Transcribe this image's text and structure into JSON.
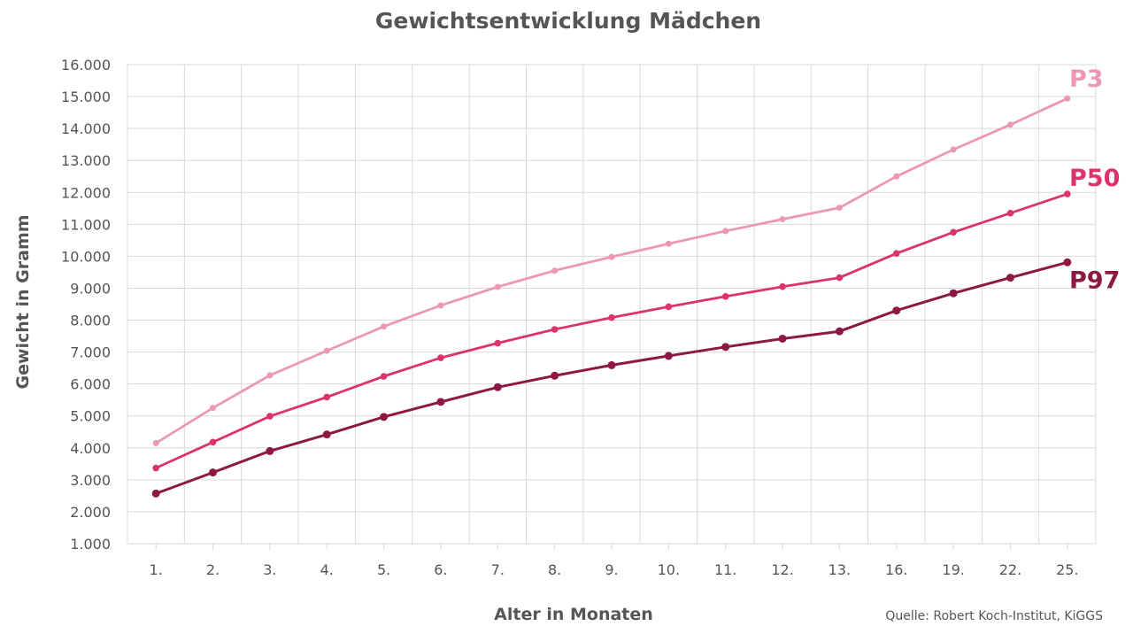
{
  "chart_data": {
    "type": "line",
    "title": "Gewichtsentwicklung Mädchen",
    "xlabel": "Alter in Monaten",
    "ylabel": "Gewicht in Gramm",
    "source": "Quelle: Robert Koch-Institut, KiGGS",
    "categories": [
      "1.",
      "2.",
      "3.",
      "4.",
      "5.",
      "6.",
      "7.",
      "8.",
      "9.",
      "10.",
      "11.",
      "12.",
      "13.",
      "16.",
      "19.",
      "22.",
      "25."
    ],
    "y_ticks": [
      "1.000",
      "2.000",
      "3.000",
      "4.000",
      "5.000",
      "6.000",
      "7.000",
      "8.000",
      "9.000",
      "10.000",
      "11.000",
      "12.000",
      "13.000",
      "14.000",
      "15.000",
      "16.000"
    ],
    "ylim": [
      1000,
      16000
    ],
    "grid": true,
    "legend": "end-of-line labels",
    "series": [
      {
        "name": "P3",
        "color": "#ec98b5",
        "values": [
          4150,
          5250,
          6270,
          7040,
          7800,
          8460,
          9040,
          9550,
          9980,
          10390,
          10790,
          11160,
          11520,
          12500,
          13340,
          14120,
          14940
        ]
      },
      {
        "name": "P50",
        "color": "#dc336e",
        "values": [
          3370,
          4180,
          4990,
          5590,
          6240,
          6820,
          7280,
          7710,
          8080,
          8420,
          8740,
          9050,
          9330,
          10090,
          10750,
          11350,
          11950
        ]
      },
      {
        "name": "P97",
        "color": "#8c1843",
        "values": [
          2570,
          3230,
          3900,
          4420,
          4970,
          5440,
          5900,
          6260,
          6590,
          6880,
          7160,
          7420,
          7650,
          8300,
          8840,
          9330,
          9810
        ]
      }
    ]
  }
}
